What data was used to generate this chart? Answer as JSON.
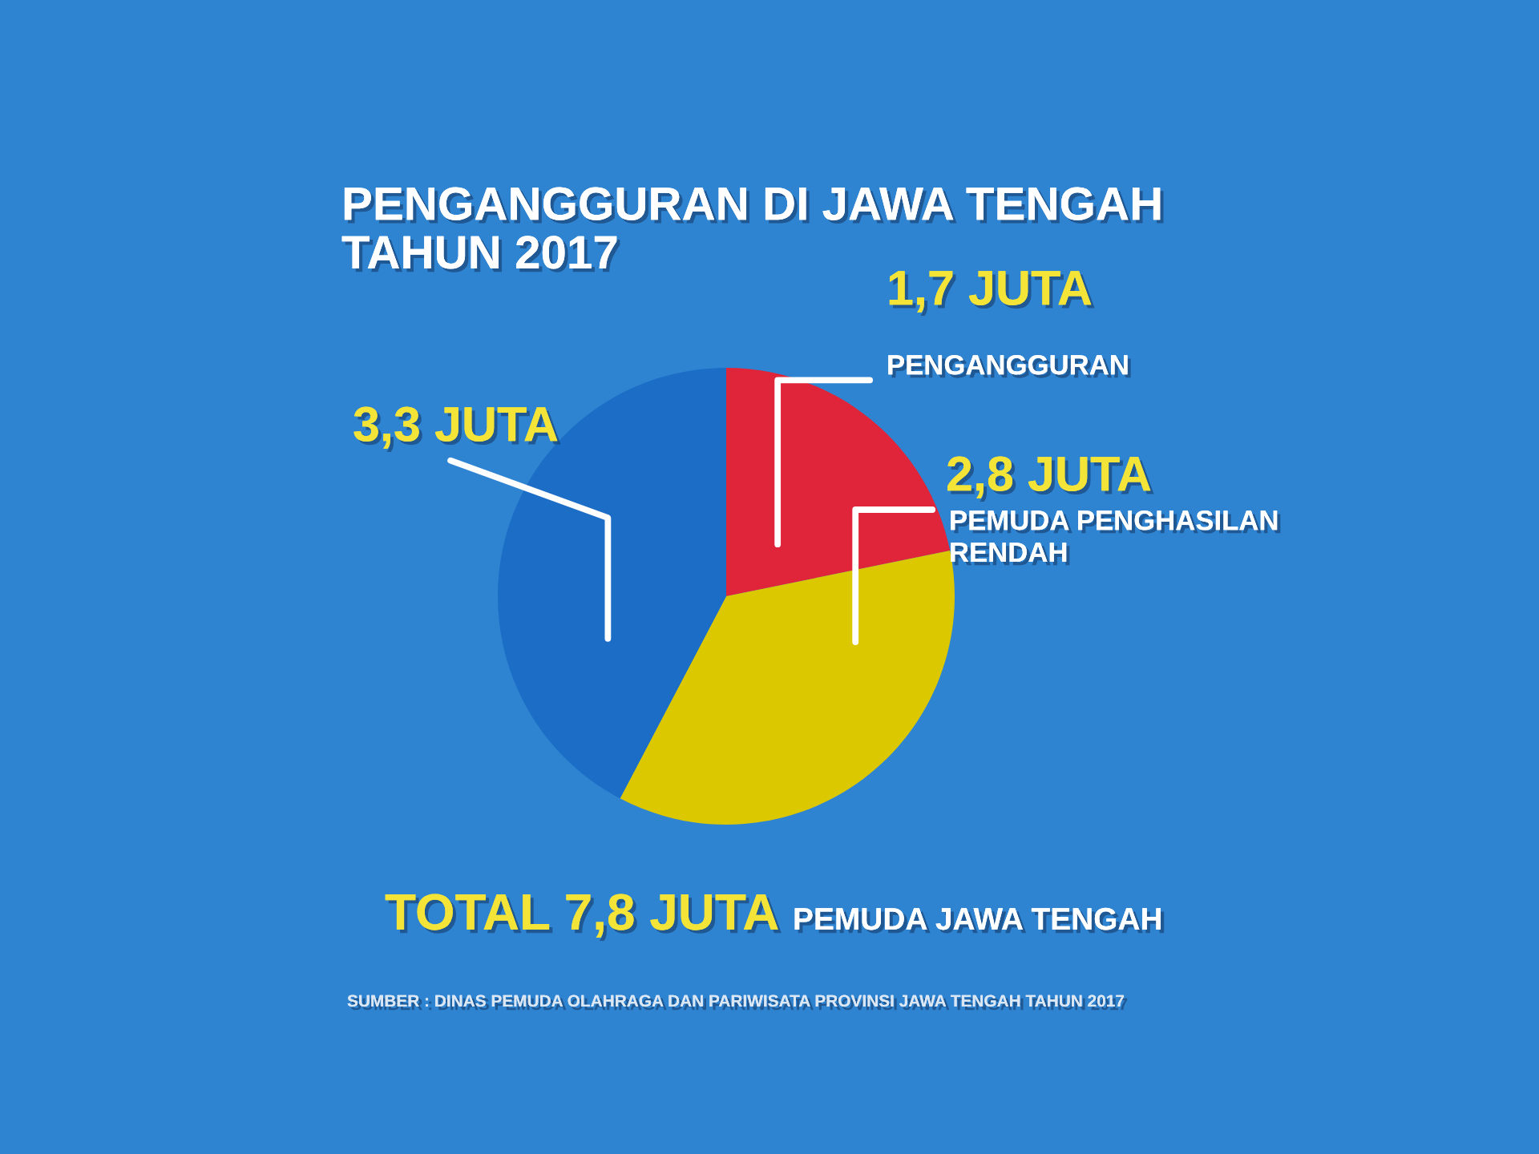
{
  "chart_data": {
    "type": "pie",
    "title": "PENGANGGURAN DI JAWA TENGAH\nTAHUN 2017",
    "categories": [
      "PENGANGGURAN",
      "PEMUDA PENGHASILAN\nRENDAH",
      null
    ],
    "values": [
      1.7,
      2.8,
      3.3
    ],
    "colors": [
      "#e0243a",
      "#dcc800",
      "#1c6dc6"
    ],
    "value_labels": [
      "1,7 JUTA",
      "2,8 JUTA",
      "3,3 JUTA"
    ],
    "annotations": [
      "TOTAL 7,8 JUTA",
      "PEMUDA JAWA TENGAH",
      "SUMBER : DINAS PEMUDA OLAHRAGA DAN PARIWISATA PROVINSI JAWA TENGAH TAHUN 2017"
    ]
  }
}
